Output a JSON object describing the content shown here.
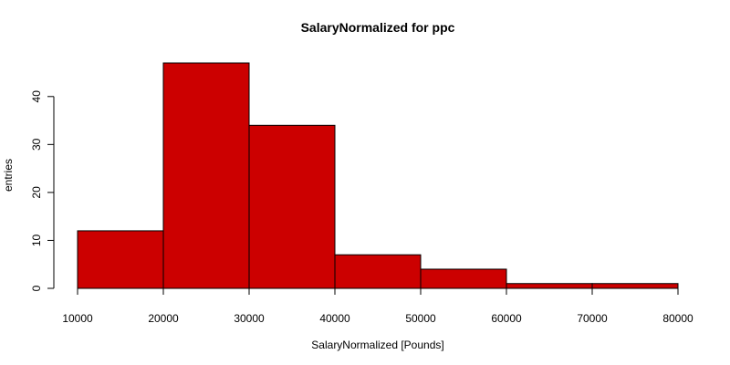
{
  "chart_data": {
    "type": "bar",
    "title": "SalaryNormalized for ppc",
    "xlabel": "SalaryNormalized [Pounds]",
    "ylabel": "entries",
    "bins": [
      {
        "from": 10000,
        "to": 20000,
        "value": 12
      },
      {
        "from": 20000,
        "to": 30000,
        "value": 47
      },
      {
        "from": 30000,
        "to": 40000,
        "value": 34
      },
      {
        "from": 40000,
        "to": 50000,
        "value": 7
      },
      {
        "from": 50000,
        "to": 60000,
        "value": 4
      },
      {
        "from": 60000,
        "to": 70000,
        "value": 1
      },
      {
        "from": 70000,
        "to": 80000,
        "value": 1
      }
    ],
    "xlim": [
      10000,
      80000
    ],
    "ylim": [
      0,
      47
    ],
    "x_ticks": [
      10000,
      20000,
      30000,
      40000,
      50000,
      60000,
      70000,
      80000
    ],
    "y_ticks": [
      0,
      10,
      20,
      30,
      40
    ],
    "bar_color": "#cc0000",
    "grid": false,
    "legend": "none"
  }
}
